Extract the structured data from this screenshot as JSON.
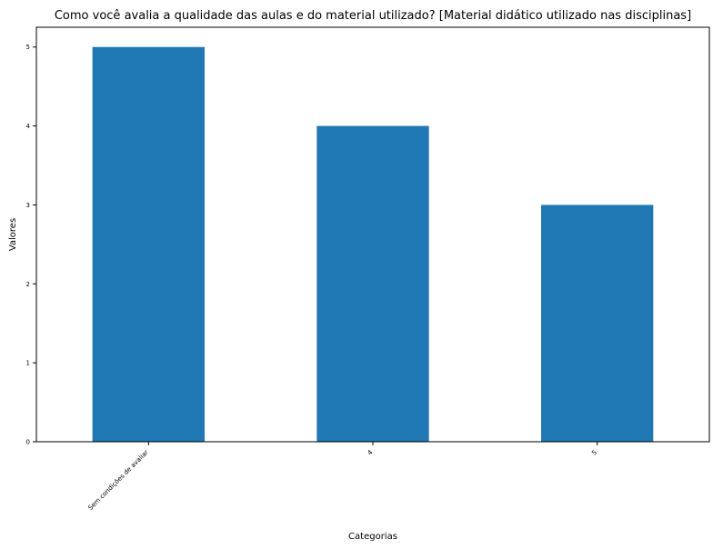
{
  "chart_data": {
    "type": "bar",
    "title": "Como você avalia a qualidade das aulas e do material utilizado? [Material didático utilizado nas disciplinas]",
    "xlabel": "Categorias",
    "ylabel": "Valores",
    "categories": [
      "Sem condições de avaliar",
      "4",
      "5"
    ],
    "values": [
      5,
      4,
      3
    ],
    "ylim": [
      0,
      5.25
    ],
    "yticks": [
      "0",
      "1",
      "2",
      "3",
      "4",
      "5"
    ],
    "bar_color": "#1f77b4",
    "grid": false,
    "legend": "none"
  }
}
